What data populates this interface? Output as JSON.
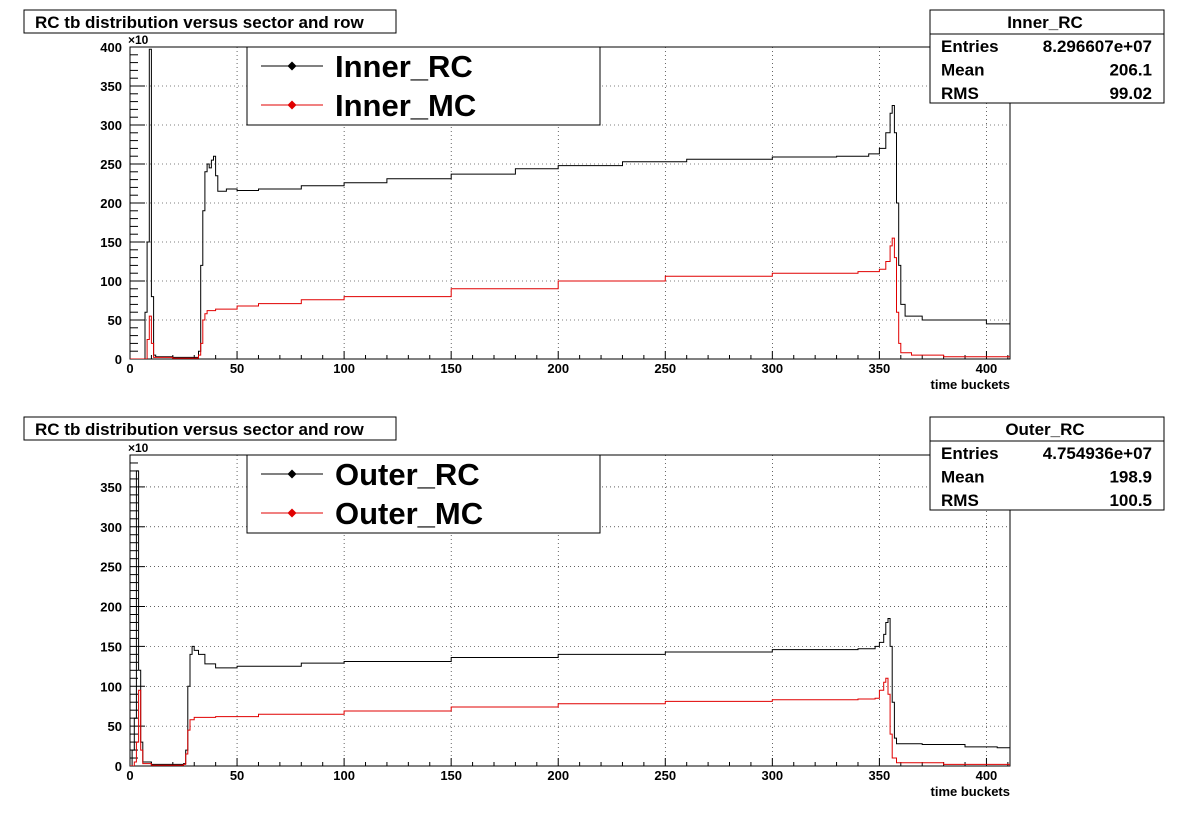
{
  "chart_data": [
    {
      "type": "line",
      "title": "RC tb distribution versus sector and row",
      "xlabel": "time buckets",
      "ylabel": "",
      "y_multiplier": "×10",
      "xlim": [
        0,
        411
      ],
      "ylim": [
        0,
        400
      ],
      "x_ticks": [
        0,
        50,
        100,
        150,
        200,
        250,
        300,
        350,
        400
      ],
      "y_ticks": [
        0,
        50,
        100,
        150,
        200,
        250,
        300,
        350,
        400
      ],
      "grid": true,
      "legend": "top-left",
      "stats": {
        "name": "Inner_RC",
        "rows": [
          {
            "label": "Entries",
            "value": "8.296607e+07"
          },
          {
            "label": "Mean",
            "value": "206.1"
          },
          {
            "label": "RMS",
            "value": "99.02"
          }
        ]
      },
      "series": [
        {
          "name": "Inner_RC",
          "color": "#000000",
          "points": [
            [
              0,
              0
            ],
            [
              6,
              0
            ],
            [
              7,
              60
            ],
            [
              8,
              150
            ],
            [
              9,
              397
            ],
            [
              10,
              80
            ],
            [
              11,
              5
            ],
            [
              12,
              3
            ],
            [
              20,
              2
            ],
            [
              30,
              2
            ],
            [
              32,
              10
            ],
            [
              33,
              120
            ],
            [
              34,
              190
            ],
            [
              35,
              240
            ],
            [
              36,
              250
            ],
            [
              37,
              245
            ],
            [
              38,
              255
            ],
            [
              39,
              260
            ],
            [
              40,
              235
            ],
            [
              41,
              215
            ],
            [
              45,
              218
            ],
            [
              50,
              216
            ],
            [
              60,
              218
            ],
            [
              80,
              222
            ],
            [
              100,
              226
            ],
            [
              120,
              231
            ],
            [
              150,
              237
            ],
            [
              180,
              244
            ],
            [
              200,
              248
            ],
            [
              230,
              253
            ],
            [
              260,
              256
            ],
            [
              300,
              259
            ],
            [
              330,
              260
            ],
            [
              345,
              263
            ],
            [
              350,
              270
            ],
            [
              353,
              290
            ],
            [
              355,
              315
            ],
            [
              356,
              325
            ],
            [
              357,
              290
            ],
            [
              358,
              200
            ],
            [
              359,
              120
            ],
            [
              360,
              70
            ],
            [
              362,
              55
            ],
            [
              370,
              50
            ],
            [
              400,
              45
            ],
            [
              411,
              43
            ]
          ]
        },
        {
          "name": "Inner_MC",
          "color": "#e00000",
          "points": [
            [
              0,
              0
            ],
            [
              7,
              0
            ],
            [
              8,
              25
            ],
            [
              9,
              55
            ],
            [
              10,
              20
            ],
            [
              11,
              2
            ],
            [
              20,
              1
            ],
            [
              30,
              1
            ],
            [
              32,
              5
            ],
            [
              33,
              20
            ],
            [
              34,
              50
            ],
            [
              35,
              58
            ],
            [
              36,
              62
            ],
            [
              40,
              64
            ],
            [
              50,
              68
            ],
            [
              60,
              71
            ],
            [
              80,
              76
            ],
            [
              100,
              80
            ],
            [
              150,
              90
            ],
            [
              200,
              100
            ],
            [
              250,
              106
            ],
            [
              300,
              110
            ],
            [
              340,
              112
            ],
            [
              350,
              115
            ],
            [
              353,
              125
            ],
            [
              355,
              145
            ],
            [
              356,
              155
            ],
            [
              357,
              130
            ],
            [
              358,
              60
            ],
            [
              359,
              20
            ],
            [
              360,
              8
            ],
            [
              365,
              5
            ],
            [
              380,
              3
            ],
            [
              411,
              2
            ]
          ]
        }
      ]
    },
    {
      "type": "line",
      "title": "RC tb distribution versus sector and row",
      "xlabel": "time buckets",
      "ylabel": "",
      "y_multiplier": "×10",
      "xlim": [
        0,
        411
      ],
      "ylim": [
        0,
        390
      ],
      "x_ticks": [
        0,
        50,
        100,
        150,
        200,
        250,
        300,
        350,
        400
      ],
      "y_ticks": [
        0,
        50,
        100,
        150,
        200,
        250,
        300,
        350
      ],
      "grid": true,
      "legend": "top-left",
      "stats": {
        "name": "Outer_RC",
        "rows": [
          {
            "label": "Entries",
            "value": "4.754936e+07"
          },
          {
            "label": "Mean",
            "value": "198.9"
          },
          {
            "label": "RMS",
            "value": "100.5"
          }
        ]
      },
      "series": [
        {
          "name": "Outer_RC",
          "color": "#000000",
          "points": [
            [
              0,
              0
            ],
            [
              1,
              20
            ],
            [
              2,
              60
            ],
            [
              3,
              370
            ],
            [
              4,
              120
            ],
            [
              5,
              30
            ],
            [
              6,
              5
            ],
            [
              10,
              2
            ],
            [
              25,
              3
            ],
            [
              26,
              20
            ],
            [
              27,
              100
            ],
            [
              28,
              140
            ],
            [
              29,
              150
            ],
            [
              30,
              145
            ],
            [
              32,
              140
            ],
            [
              35,
              128
            ],
            [
              40,
              123
            ],
            [
              50,
              125
            ],
            [
              80,
              129
            ],
            [
              100,
              131
            ],
            [
              150,
              136
            ],
            [
              200,
              140
            ],
            [
              250,
              143
            ],
            [
              300,
              146
            ],
            [
              340,
              147
            ],
            [
              348,
              150
            ],
            [
              350,
              155
            ],
            [
              352,
              165
            ],
            [
              353,
              180
            ],
            [
              354,
              185
            ],
            [
              355,
              150
            ],
            [
              356,
              80
            ],
            [
              357,
              35
            ],
            [
              358,
              28
            ],
            [
              370,
              27
            ],
            [
              390,
              24
            ],
            [
              405,
              23
            ],
            [
              411,
              28
            ]
          ]
        },
        {
          "name": "Outer_MC",
          "color": "#e00000",
          "points": [
            [
              0,
              0
            ],
            [
              2,
              5
            ],
            [
              3,
              30
            ],
            [
              4,
              95
            ],
            [
              5,
              20
            ],
            [
              6,
              3
            ],
            [
              10,
              1
            ],
            [
              25,
              2
            ],
            [
              26,
              15
            ],
            [
              27,
              45
            ],
            [
              28,
              58
            ],
            [
              30,
              61
            ],
            [
              40,
              62
            ],
            [
              60,
              65
            ],
            [
              100,
              69
            ],
            [
              150,
              74
            ],
            [
              200,
              78
            ],
            [
              250,
              81
            ],
            [
              300,
              83
            ],
            [
              340,
              84
            ],
            [
              348,
              85
            ],
            [
              350,
              95
            ],
            [
              352,
              105
            ],
            [
              353,
              110
            ],
            [
              354,
              90
            ],
            [
              355,
              40
            ],
            [
              356,
              10
            ],
            [
              358,
              4
            ],
            [
              380,
              2
            ],
            [
              411,
              1
            ]
          ]
        }
      ]
    }
  ]
}
